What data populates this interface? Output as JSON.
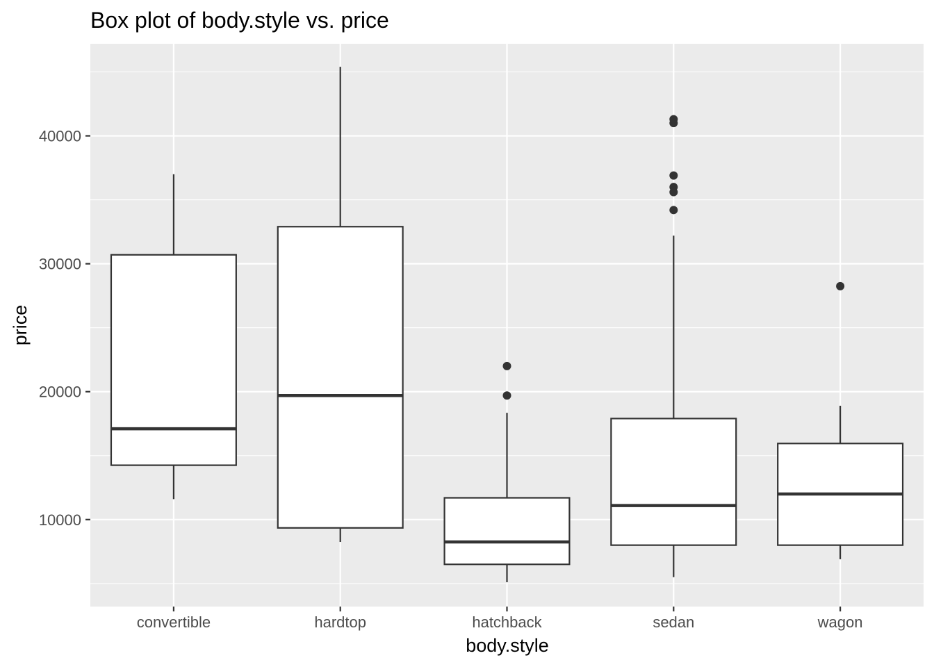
{
  "chart_data": {
    "type": "box",
    "title": "Box plot of body.style vs. price",
    "xlabel": "body.style",
    "ylabel": "price",
    "ylim": [
      3200,
      47200
    ],
    "yticks": [
      10000,
      20000,
      30000,
      40000
    ],
    "ytick_labels": [
      "10000",
      "20000",
      "30000",
      "40000"
    ],
    "grid": true,
    "legend": "none",
    "categories": [
      "convertible",
      "hardtop",
      "hatchback",
      "sedan",
      "wagon"
    ],
    "boxes": [
      {
        "category": "convertible",
        "whisker_low": 11600,
        "q1": 14250,
        "median": 17100,
        "q3": 30700,
        "whisker_high": 37000,
        "outliers": []
      },
      {
        "category": "hardtop",
        "whisker_low": 8250,
        "q1": 9350,
        "median": 19700,
        "q3": 32900,
        "whisker_high": 45400,
        "outliers": []
      },
      {
        "category": "hatchback",
        "whisker_low": 5100,
        "q1": 6500,
        "median": 8250,
        "q3": 11700,
        "whisker_high": 18350,
        "outliers": [
          19700,
          22000
        ]
      },
      {
        "category": "sedan",
        "whisker_low": 5500,
        "q1": 8000,
        "median": 11100,
        "q3": 17900,
        "whisker_high": 32200,
        "outliers": [
          34200,
          35600,
          36000,
          36900,
          41000,
          41300
        ]
      },
      {
        "category": "wagon",
        "whisker_low": 6900,
        "q1": 8000,
        "median": 12000,
        "q3": 15950,
        "whisker_high": 18900,
        "outliers": [
          28250
        ]
      }
    ],
    "colors": {
      "panel": "#ebebeb",
      "grid": "#ffffff",
      "box_fill": "#ffffff",
      "box_line": "#333333",
      "tick_text": "#4d4d4d"
    }
  }
}
